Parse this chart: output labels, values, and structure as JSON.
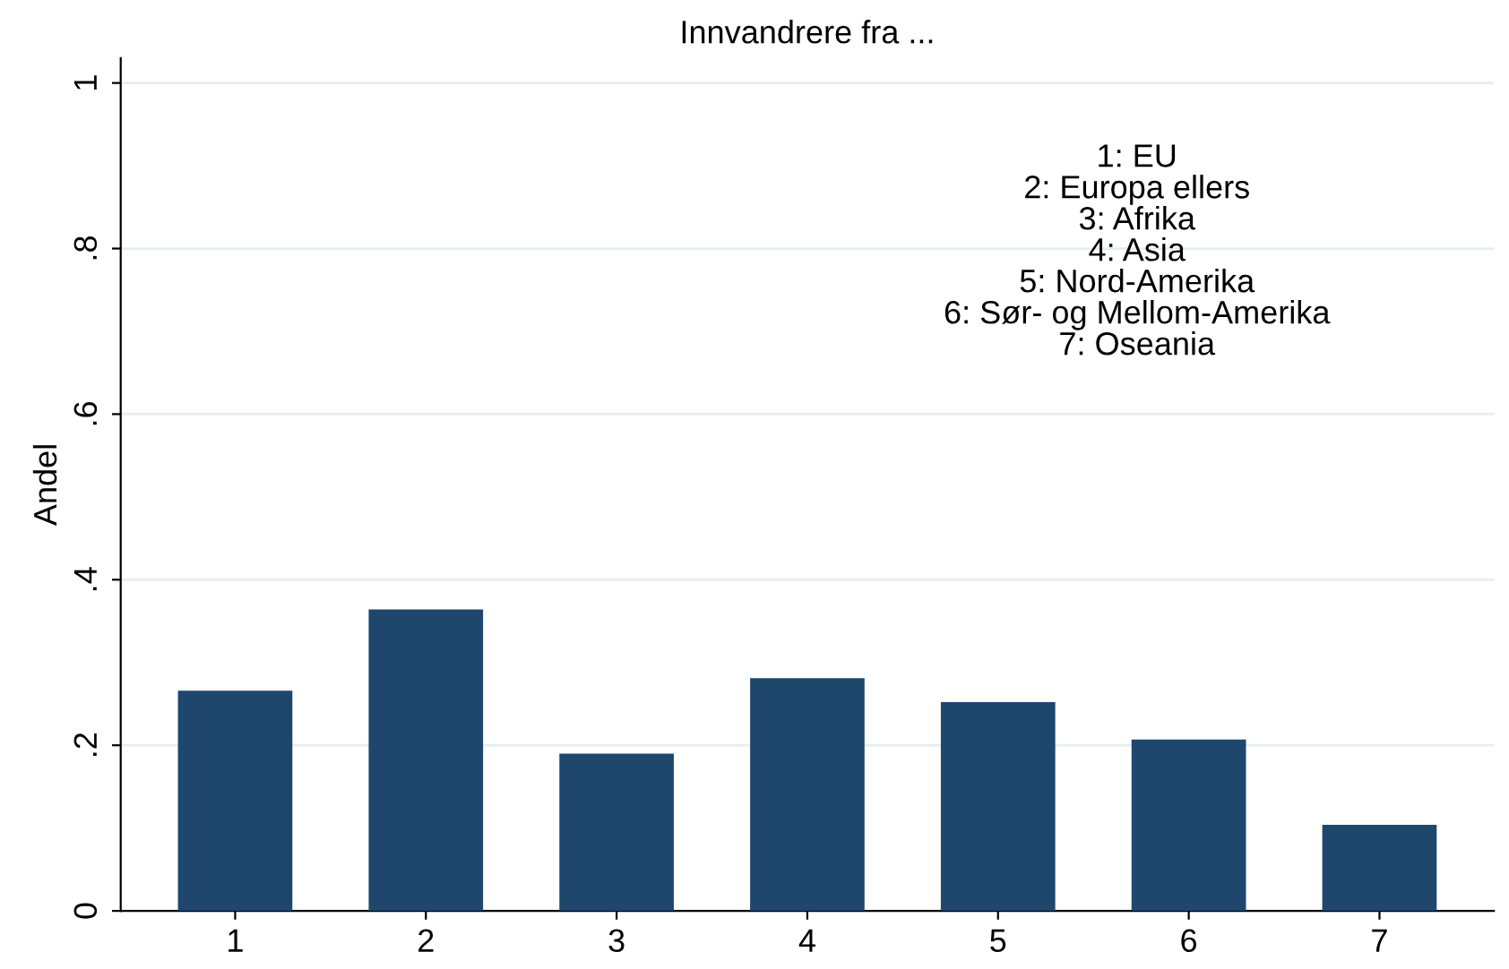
{
  "chart_data": {
    "type": "bar",
    "title": "Innvandrere fra ...",
    "ylabel": "Andel",
    "categories": [
      "1",
      "2",
      "3",
      "4",
      "5",
      "6",
      "7"
    ],
    "values": [
      0.266,
      0.364,
      0.19,
      0.281,
      0.252,
      0.207,
      0.104
    ],
    "color": "#1f476e",
    "ylim": [
      0,
      1.03
    ],
    "yticks": [
      {
        "value": 0,
        "label": "0"
      },
      {
        "value": 0.2,
        "label": ".2"
      },
      {
        "value": 0.4,
        "label": ".4"
      },
      {
        "value": 0.6,
        "label": ".6"
      },
      {
        "value": 0.8,
        "label": ".8"
      },
      {
        "value": 1,
        "label": "1"
      }
    ],
    "grid": "y",
    "annotations": [
      "1: EU\n2: Europa ellers\n3: Afrika\n4: Asia\n5: Nord-Amerika\n6: Sør- og Mellom-Amerika\n7: Oseania"
    ]
  }
}
